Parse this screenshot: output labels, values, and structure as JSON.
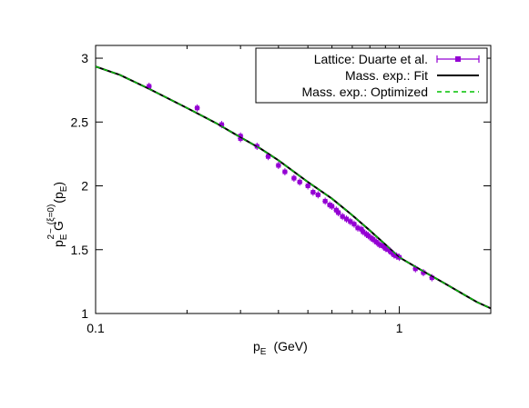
{
  "chart_data": {
    "type": "line",
    "title": "",
    "xlabel": "p",
    "xlabel_sub": "E",
    "xlabel_unit": "(GeV)",
    "ylabel": "p",
    "ylabel_sub": "E",
    "ylabel_sup": "2",
    "ylabel_G": "G",
    "ylabel_G_accent": "~",
    "ylabel_G_sup": "(ξ=0)",
    "ylabel_arg_open": "(p",
    "ylabel_arg_sub": "E",
    "ylabel_arg_close": ")",
    "x_scale": "log",
    "xlim": [
      0.1,
      2.0
    ],
    "ylim": [
      1.0,
      3.1
    ],
    "x_ticks": [
      {
        "value": 0.1,
        "label": "0.1"
      },
      {
        "value": 1,
        "label": "1"
      }
    ],
    "y_ticks": [
      {
        "value": 1,
        "label": "1"
      },
      {
        "value": 1.5,
        "label": "1.5"
      },
      {
        "value": 2,
        "label": "2"
      },
      {
        "value": 2.5,
        "label": "2.5"
      },
      {
        "value": 3,
        "label": "3"
      }
    ],
    "grid": false,
    "legend_position": "top-right",
    "colors": {
      "lattice": "#9400d3",
      "fit": "#000000",
      "optimized": "#00c000"
    },
    "series": [
      {
        "name": "Lattice: Duarte et al.",
        "kind": "errorbar-points",
        "points": [
          [
            0.15,
            2.78
          ],
          [
            0.216,
            2.61
          ],
          [
            0.26,
            2.48
          ],
          [
            0.3,
            2.39
          ],
          [
            0.3,
            2.37
          ],
          [
            0.34,
            2.31
          ],
          [
            0.37,
            2.23
          ],
          [
            0.4,
            2.16
          ],
          [
            0.42,
            2.11
          ],
          [
            0.45,
            2.06
          ],
          [
            0.47,
            2.03
          ],
          [
            0.5,
            2.0
          ],
          [
            0.52,
            1.95
          ],
          [
            0.54,
            1.93
          ],
          [
            0.57,
            1.88
          ],
          [
            0.59,
            1.85
          ],
          [
            0.6,
            1.84
          ],
          [
            0.62,
            1.81
          ],
          [
            0.63,
            1.79
          ],
          [
            0.65,
            1.76
          ],
          [
            0.67,
            1.74
          ],
          [
            0.69,
            1.72
          ],
          [
            0.71,
            1.7
          ],
          [
            0.73,
            1.67
          ],
          [
            0.75,
            1.66
          ],
          [
            0.76,
            1.64
          ],
          [
            0.78,
            1.62
          ],
          [
            0.79,
            1.61
          ],
          [
            0.81,
            1.59
          ],
          [
            0.82,
            1.58
          ],
          [
            0.84,
            1.56
          ],
          [
            0.86,
            1.54
          ],
          [
            0.88,
            1.53
          ],
          [
            0.9,
            1.51
          ],
          [
            0.92,
            1.5
          ],
          [
            0.94,
            1.48
          ],
          [
            0.96,
            1.46
          ],
          [
            0.98,
            1.45
          ],
          [
            1.0,
            1.44
          ],
          [
            1.13,
            1.35
          ],
          [
            1.2,
            1.32
          ],
          [
            1.28,
            1.28
          ]
        ]
      },
      {
        "name": "Mass. exp.: Fit",
        "kind": "line",
        "x": [
          0.1,
          0.12,
          0.15,
          0.2,
          0.25,
          0.3,
          0.35,
          0.4,
          0.5,
          0.6,
          0.7,
          0.8,
          0.9,
          1.0,
          1.2,
          1.4,
          1.6,
          1.8,
          2.0
        ],
        "y": [
          2.935,
          2.87,
          2.76,
          2.61,
          2.49,
          2.38,
          2.29,
          2.2,
          2.03,
          1.9,
          1.77,
          1.65,
          1.54,
          1.44,
          1.33,
          1.24,
          1.16,
          1.09,
          1.04
        ]
      },
      {
        "name": "Mass. exp.: Optimized",
        "kind": "dashed-line",
        "x": [
          0.1,
          0.12,
          0.15,
          0.2,
          0.25,
          0.3,
          0.35,
          0.4,
          0.5,
          0.6,
          0.7,
          0.8,
          0.9,
          1.0,
          1.2,
          1.4,
          1.6,
          1.8,
          2.0
        ],
        "y": [
          2.935,
          2.87,
          2.76,
          2.61,
          2.49,
          2.38,
          2.29,
          2.2,
          2.03,
          1.9,
          1.77,
          1.65,
          1.54,
          1.44,
          1.33,
          1.24,
          1.16,
          1.09,
          1.04
        ]
      }
    ]
  }
}
